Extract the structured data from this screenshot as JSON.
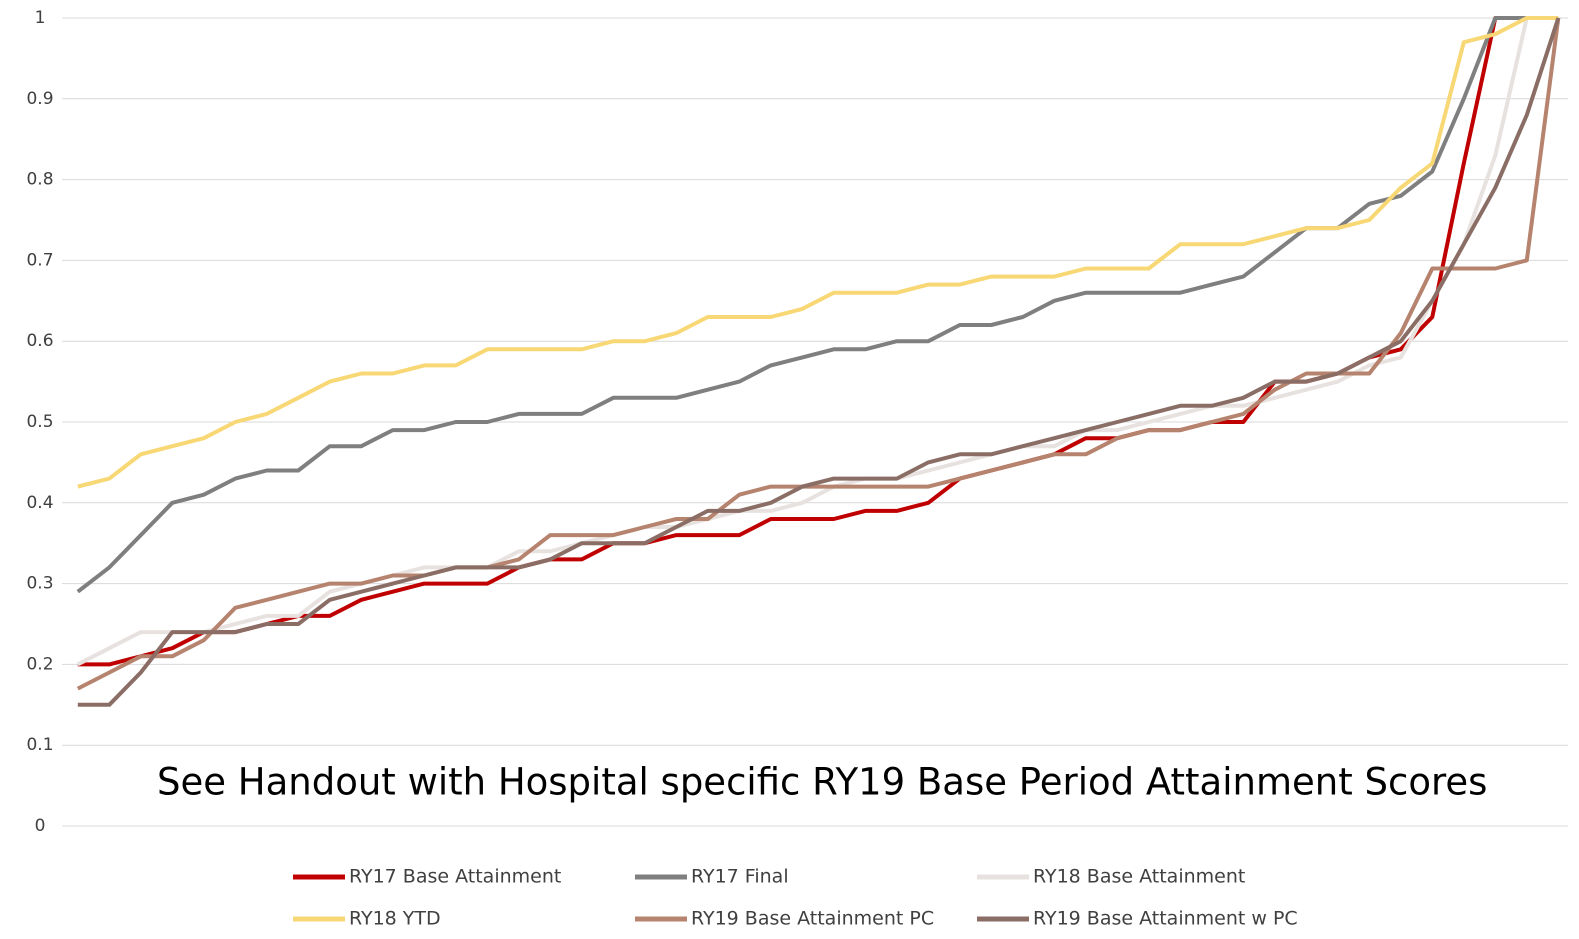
{
  "chart_data": {
    "type": "line",
    "annotation": "See Handout with Hospital specific RY19 Base Period Attainment Scores",
    "categories": [
      null,
      null,
      null,
      null,
      null,
      null,
      null,
      null,
      null,
      null,
      null,
      null,
      null,
      null,
      null,
      null,
      null,
      null,
      null,
      null,
      null,
      null,
      null,
      null,
      null,
      null,
      null,
      null,
      null,
      null,
      null,
      null,
      null,
      null,
      null,
      null,
      null,
      null,
      null,
      null,
      null,
      null,
      null,
      null,
      null,
      null,
      null,
      null
    ],
    "ylim": [
      0,
      1
    ],
    "yticks": [
      0,
      0.1,
      0.2,
      0.3,
      0.4,
      0.5,
      0.6,
      0.7,
      0.8,
      0.9,
      1
    ],
    "grid": true,
    "legend": "bottom",
    "series": [
      {
        "name": "RY17 Base Attainment",
        "color": "#c00000",
        "values": [
          0.2,
          0.2,
          0.21,
          0.22,
          0.24,
          0.24,
          0.25,
          0.26,
          0.26,
          0.28,
          0.29,
          0.3,
          0.3,
          0.3,
          0.32,
          0.33,
          0.33,
          0.35,
          0.35,
          0.36,
          0.36,
          0.36,
          0.38,
          0.38,
          0.38,
          0.39,
          0.39,
          0.4,
          0.43,
          0.44,
          0.45,
          0.46,
          0.48,
          0.48,
          0.49,
          0.49,
          0.5,
          0.5,
          0.55,
          0.55,
          0.56,
          0.58,
          0.59,
          0.63,
          0.82,
          1.0,
          1.0,
          1.0
        ]
      },
      {
        "name": "RY17 Final",
        "color": "#7f7f7f",
        "values": [
          0.29,
          0.32,
          0.36,
          0.4,
          0.41,
          0.43,
          0.44,
          0.44,
          0.47,
          0.47,
          0.49,
          0.49,
          0.5,
          0.5,
          0.51,
          0.51,
          0.51,
          0.53,
          0.53,
          0.53,
          0.54,
          0.55,
          0.57,
          0.58,
          0.59,
          0.59,
          0.6,
          0.6,
          0.62,
          0.62,
          0.63,
          0.65,
          0.66,
          0.66,
          0.66,
          0.66,
          0.67,
          0.68,
          0.71,
          0.74,
          0.74,
          0.77,
          0.78,
          0.81,
          0.9,
          1.0,
          1.0,
          1.0
        ]
      },
      {
        "name": "RY18 Base Attainment",
        "color": "#e7e2df",
        "values": [
          0.2,
          0.22,
          0.24,
          0.24,
          0.24,
          0.25,
          0.26,
          0.26,
          0.29,
          0.3,
          0.31,
          0.32,
          0.32,
          0.32,
          0.34,
          0.34,
          0.35,
          0.36,
          0.37,
          0.37,
          0.38,
          0.39,
          0.39,
          0.4,
          0.42,
          0.43,
          0.43,
          0.44,
          0.45,
          0.46,
          0.47,
          0.47,
          0.49,
          0.49,
          0.5,
          0.51,
          0.52,
          0.52,
          0.53,
          0.54,
          0.55,
          0.57,
          0.58,
          0.65,
          0.72,
          0.83,
          1.0,
          1.0
        ]
      },
      {
        "name": "RY18 YTD",
        "color": "#f8d775",
        "values": [
          0.42,
          0.43,
          0.46,
          0.47,
          0.48,
          0.5,
          0.51,
          0.53,
          0.55,
          0.56,
          0.56,
          0.57,
          0.57,
          0.59,
          0.59,
          0.59,
          0.59,
          0.6,
          0.6,
          0.61,
          0.63,
          0.63,
          0.63,
          0.64,
          0.66,
          0.66,
          0.66,
          0.67,
          0.67,
          0.68,
          0.68,
          0.68,
          0.69,
          0.69,
          0.69,
          0.72,
          0.72,
          0.72,
          0.73,
          0.74,
          0.74,
          0.75,
          0.79,
          0.82,
          0.97,
          0.98,
          1.0,
          1.0
        ]
      },
      {
        "name": "RY19 Base Attainment PC",
        "color": "#b5836e",
        "values": [
          0.17,
          0.19,
          0.21,
          0.21,
          0.23,
          0.27,
          0.28,
          0.29,
          0.3,
          0.3,
          0.31,
          0.31,
          0.32,
          0.32,
          0.33,
          0.36,
          0.36,
          0.36,
          0.37,
          0.38,
          0.38,
          0.41,
          0.42,
          0.42,
          0.42,
          0.42,
          0.42,
          0.42,
          0.43,
          0.44,
          0.45,
          0.46,
          0.46,
          0.48,
          0.49,
          0.49,
          0.5,
          0.51,
          0.54,
          0.56,
          0.56,
          0.56,
          0.61,
          0.69,
          0.69,
          0.69,
          0.7,
          1.0
        ]
      },
      {
        "name": "RY19 Base Attainment w PC",
        "color": "#8a6e66",
        "values": [
          0.15,
          0.15,
          0.19,
          0.24,
          0.24,
          0.24,
          0.25,
          0.25,
          0.28,
          0.29,
          0.3,
          0.31,
          0.32,
          0.32,
          0.32,
          0.33,
          0.35,
          0.35,
          0.35,
          0.37,
          0.39,
          0.39,
          0.4,
          0.42,
          0.43,
          0.43,
          0.43,
          0.45,
          0.46,
          0.46,
          0.47,
          0.48,
          0.49,
          0.5,
          0.51,
          0.52,
          0.52,
          0.53,
          0.55,
          0.55,
          0.56,
          0.58,
          0.6,
          0.65,
          0.72,
          0.79,
          0.88,
          1.0
        ]
      }
    ]
  }
}
